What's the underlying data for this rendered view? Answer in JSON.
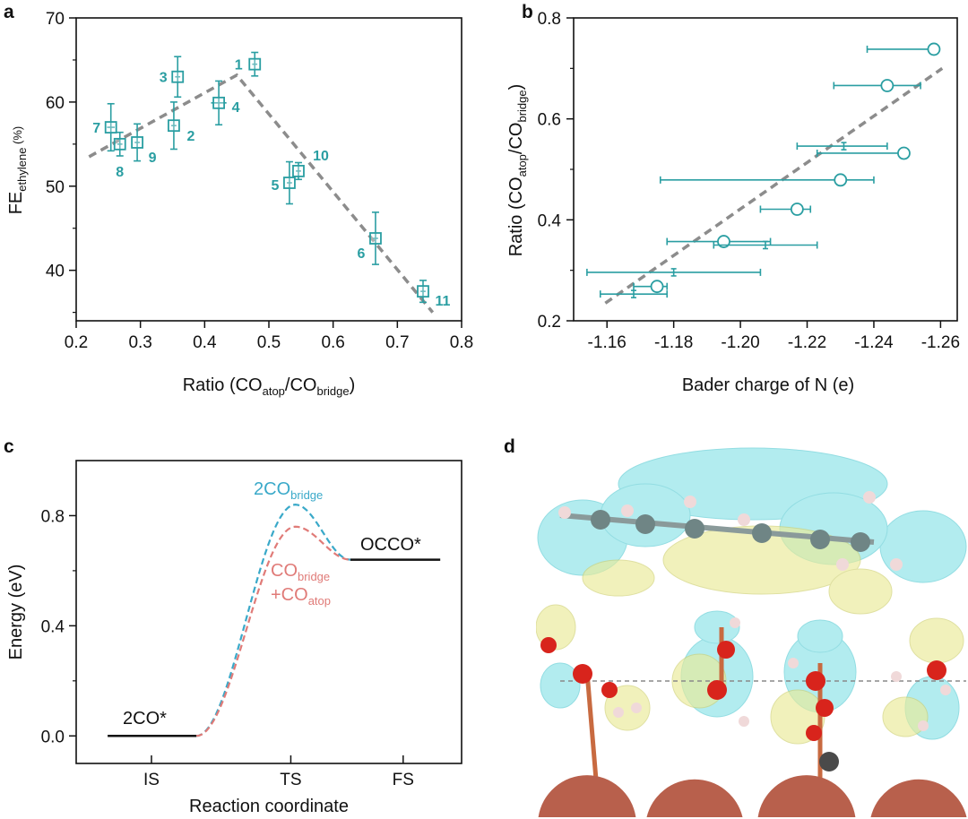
{
  "colors": {
    "teal": "#2a9ea2",
    "trend": "#8c8c8c",
    "bridge": "#3aa9c9",
    "mixed": "#e07b78",
    "level": "#111111"
  },
  "chart_data": [
    {
      "panel": "a",
      "type": "scatter",
      "xlabel": {
        "main": "Ratio (CO",
        "sub1": "atop",
        "mid": "/CO",
        "sub2": "bridge",
        "end": ")"
      },
      "ylabel": {
        "main": "FE",
        "sub": "ethylene",
        "end": " (%)"
      },
      "xlim": [
        0.2,
        0.8
      ],
      "ylim": [
        34,
        70
      ],
      "xticks": [
        "0.2",
        "0.3",
        "0.4",
        "0.5",
        "0.6",
        "0.7",
        "0.8"
      ],
      "yticks": [
        "40",
        "50",
        "60",
        "70"
      ],
      "points": [
        {
          "label": "1",
          "x": 0.478,
          "y": 64.5,
          "yerr": 1.4,
          "xerr": 0.004
        },
        {
          "label": "2",
          "x": 0.352,
          "y": 57.2,
          "yerr": 2.8,
          "xerr": 0.004
        },
        {
          "label": "3",
          "x": 0.358,
          "y": 63.0,
          "yerr": 2.4,
          "xerr": 0.004
        },
        {
          "label": "4",
          "x": 0.422,
          "y": 59.9,
          "yerr": 2.6,
          "xerr": 0.012
        },
        {
          "label": "5",
          "x": 0.532,
          "y": 50.4,
          "yerr": 2.5,
          "xerr": 0.004
        },
        {
          "label": "6",
          "x": 0.666,
          "y": 43.8,
          "yerr": 3.1,
          "xerr": 0.004
        },
        {
          "label": "7",
          "x": 0.254,
          "y": 57.0,
          "yerr": 2.8,
          "xerr": 0.006
        },
        {
          "label": "8",
          "x": 0.268,
          "y": 55.0,
          "yerr": 1.4,
          "xerr": 0.004
        },
        {
          "label": "9",
          "x": 0.295,
          "y": 55.2,
          "yerr": 2.2,
          "xerr": 0.004
        },
        {
          "label": "10",
          "x": 0.546,
          "y": 51.8,
          "yerr": 1.0,
          "xerr": 0.004
        },
        {
          "label": "11",
          "x": 0.74,
          "y": 37.5,
          "yerr": 1.3,
          "xerr": 0.004
        }
      ],
      "trend": [
        [
          0.22,
          53.5
        ],
        [
          0.45,
          63.2
        ],
        [
          0.755,
          35.0
        ]
      ]
    },
    {
      "panel": "b",
      "type": "scatter",
      "xlabel": "Bader charge of N (e)",
      "ylabel": {
        "main": "Ratio (CO",
        "sub1": "atop",
        "mid": "/CO",
        "sub2": "bridge",
        "end": ")"
      },
      "xlim": [
        -1.15,
        -1.265
      ],
      "ylim": [
        0.2,
        0.8
      ],
      "xticks": [
        "-1.16",
        "-1.18",
        "-1.20",
        "-1.22",
        "-1.24",
        "-1.26"
      ],
      "yticks": [
        "0.2",
        "0.4",
        "0.6",
        "0.8"
      ],
      "points": [
        {
          "x": -1.258,
          "y": 0.738,
          "xlo": -1.238,
          "xhi": -1.258,
          "marker": "circle"
        },
        {
          "x": -1.244,
          "y": 0.666,
          "xlo": -1.228,
          "xhi": -1.254,
          "marker": "circle"
        },
        {
          "x": -1.231,
          "y": 0.546,
          "xlo": -1.217,
          "xhi": -1.244,
          "marker": "small"
        },
        {
          "x": -1.249,
          "y": 0.532,
          "xlo": -1.223,
          "xhi": -1.249,
          "marker": "circle"
        },
        {
          "x": -1.23,
          "y": 0.479,
          "xlo": -1.176,
          "xhi": -1.24,
          "marker": "circle"
        },
        {
          "x": -1.217,
          "y": 0.421,
          "xlo": -1.206,
          "xhi": -1.221,
          "marker": "circle"
        },
        {
          "x": -1.195,
          "y": 0.357,
          "xlo": -1.178,
          "xhi": -1.209,
          "marker": "circle"
        },
        {
          "x": -1.2075,
          "y": 0.35,
          "xlo": -1.192,
          "xhi": -1.223,
          "marker": "small"
        },
        {
          "x": -1.18,
          "y": 0.296,
          "xlo": -1.154,
          "xhi": -1.206,
          "marker": "small"
        },
        {
          "x": -1.175,
          "y": 0.268,
          "xlo": -1.168,
          "xhi": -1.178,
          "marker": "circle"
        },
        {
          "x": -1.168,
          "y": 0.253,
          "xlo": -1.158,
          "xhi": -1.178,
          "marker": "small"
        }
      ],
      "trend": [
        [
          -1.1595,
          0.235
        ],
        [
          -1.2605,
          0.7
        ]
      ]
    },
    {
      "panel": "c",
      "type": "line",
      "xlabel": "Reaction coordinate",
      "ylabel": "Energy (eV)",
      "ylim": [
        -0.1,
        1.0
      ],
      "yticks": [
        "0.0",
        "0.4",
        "0.8"
      ],
      "categories": [
        "IS",
        "TS",
        "FS"
      ],
      "levels": [
        {
          "state": "IS",
          "label": "2CO*",
          "energy": 0.0
        },
        {
          "state": "FS",
          "label": "OCCO*",
          "energy": 0.64
        }
      ],
      "series": [
        {
          "name": "2CO",
          "sub": "bridge",
          "ts_energy": 0.84
        },
        {
          "name": "CO",
          "sub": "bridge",
          "name2": "+CO",
          "sub2": "atop",
          "ts_energy": 0.76
        }
      ]
    }
  ],
  "panels": {
    "a": "a",
    "b": "b",
    "c": "c",
    "d": "d"
  }
}
